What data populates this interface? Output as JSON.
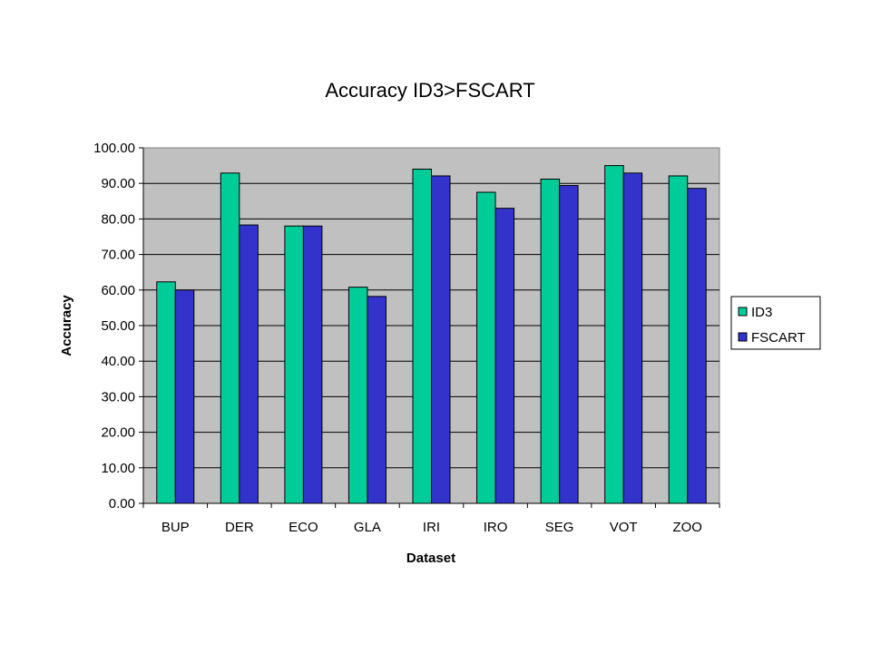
{
  "chart_data": {
    "type": "bar",
    "title": "Accuracy ID3>FSCART",
    "xlabel": "Dataset",
    "ylabel": "Accuracy",
    "categories": [
      "BUP",
      "DER",
      "ECO",
      "GLA",
      "IRI",
      "IRO",
      "SEG",
      "VOT",
      "ZOO"
    ],
    "series": [
      {
        "name": "ID3",
        "values": [
          62.3,
          92.9,
          78.0,
          60.8,
          94.0,
          87.5,
          91.2,
          95.0,
          92.1
        ]
      },
      {
        "name": "FSCART",
        "values": [
          60.0,
          78.3,
          78.0,
          58.2,
          92.1,
          83.0,
          89.4,
          92.9,
          88.6
        ]
      }
    ],
    "ylim": [
      0,
      100
    ],
    "yticks": [
      "0.00",
      "10.00",
      "20.00",
      "30.00",
      "40.00",
      "50.00",
      "60.00",
      "70.00",
      "80.00",
      "90.00",
      "100.00"
    ],
    "grid": true,
    "legend_position": "right",
    "colors": {
      "ID3": "#00CC99",
      "FSCART": "#3333CC",
      "plot_background": "#C0C0C0",
      "gridline": "#000000"
    }
  }
}
